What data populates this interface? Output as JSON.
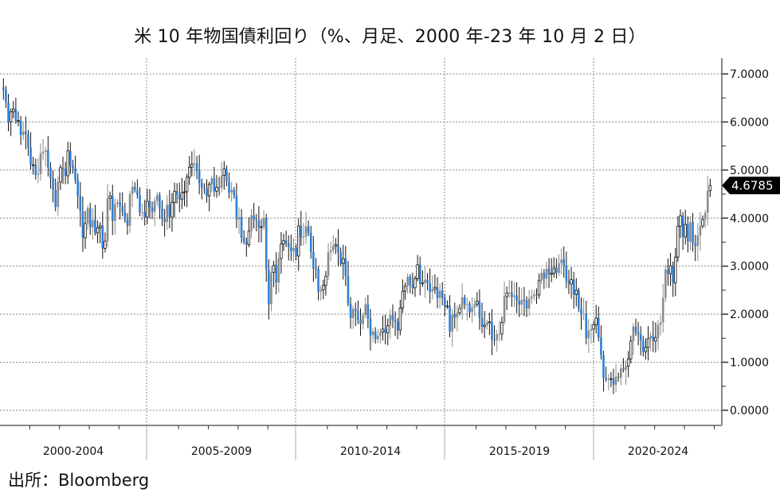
{
  "title": "米 10 年物国債利回り（%、月足、2000 年-23 年 10 月 2 日）",
  "source": "出所：Bloomberg",
  "colors": {
    "down_candle": "#2e7fd6",
    "up_candle_outline": "#111111",
    "neutral_candle": "#8a8a8a",
    "grid": "#888888",
    "axis": "#888888",
    "last_label_bg": "#000000"
  },
  "chart_data": {
    "type": "candlestick",
    "title": "米 10 年物国債利回り（%、月足、2000 年-23 年 10 月 2 日）",
    "xlabel": "",
    "ylabel": "%",
    "ylim": [
      0,
      7
    ],
    "y_ticks": [
      "7.0000",
      "6.0000",
      "5.0000",
      "4.0000",
      "3.0000",
      "2.0000",
      "1.0000",
      "0.0000"
    ],
    "x_categories": [
      "2000-2004",
      "2005-2009",
      "2010-2014",
      "2015-2019",
      "2020-2024"
    ],
    "grid": true,
    "last_value_label": "4.6785",
    "start": "2000-01",
    "frequency": "monthly",
    "closes": [
      6.67,
      6.41,
      6.0,
      6.21,
      6.27,
      6.03,
      6.03,
      5.73,
      5.8,
      5.75,
      5.47,
      5.11,
      5.11,
      4.9,
      4.92,
      5.35,
      5.38,
      5.41,
      5.05,
      4.83,
      4.59,
      4.23,
      4.75,
      5.05,
      5.03,
      4.88,
      5.4,
      5.09,
      5.04,
      4.8,
      4.46,
      4.14,
      3.59,
      3.89,
      4.21,
      3.81,
      3.96,
      3.69,
      3.8,
      3.84,
      3.37,
      3.52,
      4.41,
      4.46,
      3.94,
      4.29,
      4.33,
      4.25,
      4.13,
      3.97,
      3.84,
      4.5,
      4.65,
      4.58,
      4.48,
      4.12,
      4.12,
      4.02,
      4.35,
      4.22,
      4.13,
      4.36,
      4.48,
      4.2,
      3.99,
      3.92,
      4.28,
      4.02,
      4.33,
      4.56,
      4.49,
      4.39,
      4.53,
      4.55,
      4.85,
      5.06,
      5.12,
      5.14,
      4.99,
      4.73,
      4.63,
      4.61,
      4.46,
      4.7,
      4.83,
      4.56,
      4.64,
      4.63,
      4.89,
      5.02,
      4.76,
      4.53,
      4.59,
      4.47,
      3.97,
      4.02,
      3.59,
      3.51,
      3.45,
      3.73,
      4.06,
      3.97,
      3.95,
      3.81,
      3.82,
      4.0,
      2.93,
      2.21,
      2.87,
      3.02,
      2.66,
      3.16,
      3.46,
      3.53,
      3.48,
      3.4,
      3.31,
      3.38,
      3.21,
      3.84,
      3.6,
      3.61,
      3.83,
      3.69,
      3.3,
      2.95,
      2.94,
      2.47,
      2.51,
      2.6,
      2.79,
      3.29,
      3.33,
      3.42,
      3.45,
      3.29,
      3.05,
      3.16,
      2.8,
      2.22,
      1.92,
      2.11,
      2.07,
      1.88,
      1.8,
      1.98,
      2.21,
      1.91,
      1.56,
      1.64,
      1.48,
      1.55,
      1.63,
      1.69,
      1.61,
      1.76,
      1.98,
      1.88,
      1.84,
      1.67,
      2.13,
      2.48,
      2.58,
      2.78,
      2.61,
      2.55,
      2.74,
      3.03,
      2.64,
      2.65,
      2.72,
      2.65,
      2.47,
      2.52,
      2.56,
      2.34,
      2.49,
      2.34,
      2.16,
      2.17,
      1.64,
      1.99,
      1.93,
      2.03,
      2.12,
      2.35,
      2.2,
      2.21,
      2.04,
      2.14,
      2.21,
      2.27,
      1.92,
      1.74,
      1.77,
      1.83,
      1.84,
      1.47,
      1.46,
      1.58,
      1.59,
      1.83,
      2.37,
      2.44,
      2.45,
      2.36,
      2.39,
      2.28,
      2.2,
      2.3,
      2.29,
      2.12,
      2.33,
      2.37,
      2.41,
      2.4,
      2.7,
      2.86,
      2.74,
      2.95,
      2.83,
      2.85,
      2.96,
      2.86,
      3.06,
      3.14,
      3.01,
      2.69,
      2.63,
      2.72,
      2.41,
      2.5,
      2.12,
      2.0,
      2.01,
      1.5,
      1.66,
      1.69,
      1.78,
      1.92,
      1.51,
      1.15,
      0.67,
      0.64,
      0.65,
      0.66,
      0.53,
      0.7,
      0.68,
      0.87,
      0.84,
      0.92,
      1.07,
      1.44,
      1.74,
      1.63,
      1.58,
      1.45,
      1.22,
      1.31,
      1.49,
      1.55,
      1.44,
      1.51,
      1.78,
      1.83,
      2.34,
      2.93,
      2.84,
      3.01,
      2.65,
      3.19,
      3.83,
      4.05,
      3.61,
      3.87,
      3.51,
      3.92,
      3.47,
      3.42,
      3.64,
      3.84,
      3.97,
      4.11,
      4.57,
      4.68
    ],
    "last_close": 4.6785
  }
}
